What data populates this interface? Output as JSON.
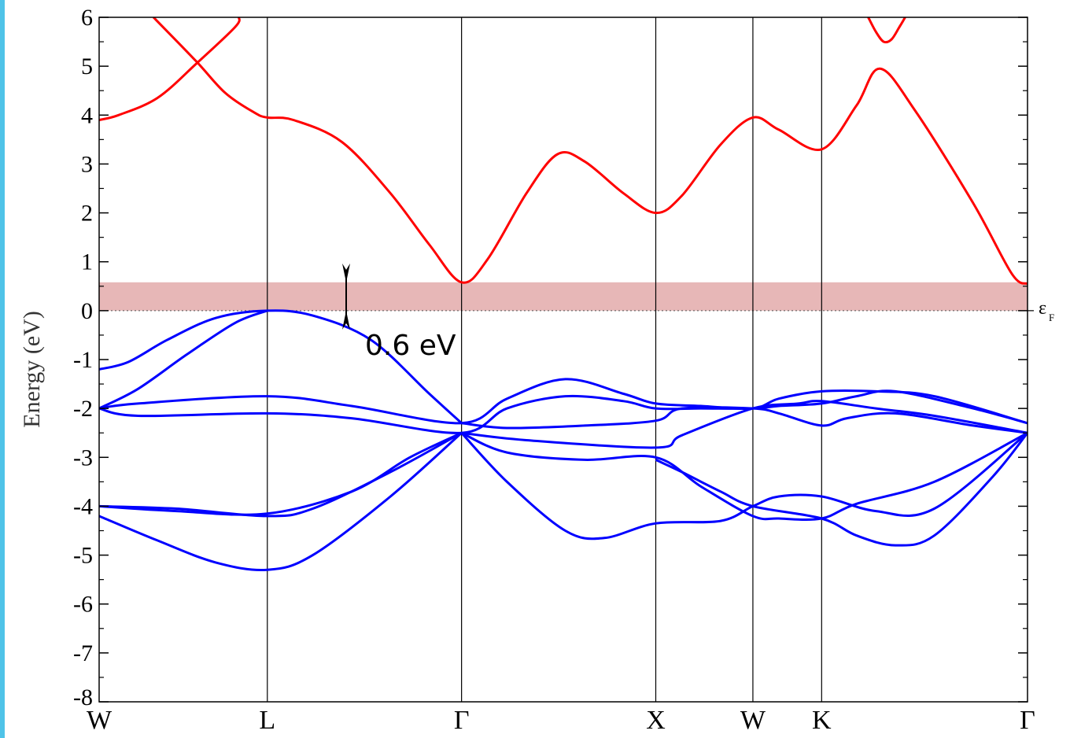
{
  "chart_data": {
    "type": "line",
    "ylabel": "Energy (eV)",
    "ylim": [
      -8,
      6
    ],
    "yticks": [
      "-8",
      "-7",
      "-6",
      "-5",
      "-4",
      "-3",
      "-2",
      "-1",
      "0",
      "1",
      "2",
      "3",
      "4",
      "5",
      "6"
    ],
    "grid": false,
    "kpoints": [
      {
        "label": "W",
        "x": 0
      },
      {
        "label": "L",
        "x": 0.866
      },
      {
        "label": "Γ",
        "x": 1.866
      },
      {
        "label": "X",
        "x": 2.866
      },
      {
        "label": "W",
        "x": 3.366
      },
      {
        "label": "K",
        "x": 3.72
      },
      {
        "label": "Γ",
        "x": 4.78
      }
    ],
    "fermi_level": 0,
    "fermi_label": "ε",
    "fermi_label_sub": "F",
    "gap": {
      "from": 0,
      "to": 0.58,
      "label": "0.6 eV",
      "color": "#e6b3b3"
    },
    "colors": {
      "conduction": "#ff0000",
      "valence": "#0000ff"
    },
    "series": [
      {
        "band": "conduction",
        "points": [
          [
            0,
            3.9
          ],
          [
            0.1,
            4.0
          ],
          [
            0.3,
            4.35
          ],
          [
            0.5,
            5.05
          ],
          [
            0.7,
            5.8
          ],
          [
            0.72,
            6.0
          ]
        ]
      },
      {
        "band": "conduction",
        "points": [
          [
            0.28,
            6.0
          ],
          [
            0.5,
            5.1
          ],
          [
            0.65,
            4.45
          ],
          [
            0.8,
            4.05
          ],
          [
            0.866,
            3.95
          ],
          [
            1.0,
            3.9
          ],
          [
            1.25,
            3.45
          ],
          [
            1.5,
            2.4
          ],
          [
            1.7,
            1.35
          ],
          [
            1.866,
            0.58
          ],
          [
            2.0,
            1.05
          ],
          [
            2.2,
            2.4
          ],
          [
            2.36,
            3.2
          ],
          [
            2.5,
            3.05
          ],
          [
            2.7,
            2.4
          ],
          [
            2.866,
            2.0
          ],
          [
            3.0,
            2.35
          ],
          [
            3.2,
            3.4
          ],
          [
            3.366,
            3.95
          ],
          [
            3.5,
            3.7
          ],
          [
            3.72,
            3.3
          ],
          [
            3.9,
            4.2
          ],
          [
            4.02,
            4.95
          ],
          [
            4.2,
            4.1
          ],
          [
            4.5,
            2.2
          ],
          [
            4.7,
            0.75
          ],
          [
            4.78,
            0.55
          ]
        ]
      },
      {
        "band": "conduction",
        "points": [
          [
            3.96,
            6.0
          ],
          [
            4.0,
            5.7
          ],
          [
            4.04,
            5.5
          ],
          [
            4.08,
            5.55
          ],
          [
            4.12,
            5.8
          ],
          [
            4.15,
            6.0
          ]
        ]
      },
      {
        "band": "valence",
        "points": [
          [
            0,
            -1.2
          ],
          [
            0.15,
            -1.05
          ],
          [
            0.35,
            -0.6
          ],
          [
            0.6,
            -0.15
          ],
          [
            0.866,
            0.0
          ],
          [
            1.1,
            -0.1
          ],
          [
            1.4,
            -0.6
          ],
          [
            1.7,
            -1.7
          ],
          [
            1.866,
            -2.3
          ]
        ]
      },
      {
        "band": "valence",
        "points": [
          [
            0,
            -2.0
          ],
          [
            0.2,
            -1.6
          ],
          [
            0.45,
            -0.9
          ],
          [
            0.7,
            -0.25
          ],
          [
            0.866,
            0.0
          ]
        ]
      },
      {
        "band": "valence",
        "points": [
          [
            0,
            -2.0
          ],
          [
            0.2,
            -1.9
          ],
          [
            0.866,
            -1.75
          ],
          [
            1.3,
            -1.95
          ],
          [
            1.866,
            -2.3
          ],
          [
            2.1,
            -1.8
          ],
          [
            2.4,
            -1.4
          ],
          [
            2.7,
            -1.7
          ],
          [
            2.866,
            -1.9
          ],
          [
            3.1,
            -1.95
          ],
          [
            3.366,
            -2.0
          ],
          [
            3.5,
            -1.8
          ],
          [
            3.72,
            -1.65
          ],
          [
            4.0,
            -1.65
          ],
          [
            4.3,
            -1.75
          ],
          [
            4.78,
            -2.3
          ]
        ]
      },
      {
        "band": "valence",
        "points": [
          [
            0,
            -2.0
          ],
          [
            0.2,
            -2.15
          ],
          [
            0.866,
            -2.1
          ],
          [
            1.3,
            -2.2
          ],
          [
            1.866,
            -2.5
          ],
          [
            2.1,
            -2.0
          ],
          [
            2.4,
            -1.75
          ],
          [
            2.7,
            -1.85
          ],
          [
            2.866,
            -2.0
          ],
          [
            3.1,
            -2.0
          ],
          [
            3.366,
            -2.0
          ],
          [
            3.5,
            -1.95
          ],
          [
            3.72,
            -1.9
          ],
          [
            3.9,
            -1.75
          ],
          [
            4.1,
            -1.65
          ],
          [
            4.5,
            -2.0
          ],
          [
            4.78,
            -2.3
          ]
        ]
      },
      {
        "band": "valence",
        "points": [
          [
            1.866,
            -2.3
          ],
          [
            2.1,
            -2.4
          ],
          [
            2.5,
            -2.35
          ],
          [
            2.866,
            -2.25
          ],
          [
            3.0,
            -2.0
          ],
          [
            3.366,
            -2.0
          ],
          [
            3.5,
            -2.1
          ],
          [
            3.72,
            -2.35
          ],
          [
            3.85,
            -2.2
          ],
          [
            4.1,
            -2.1
          ],
          [
            4.5,
            -2.35
          ],
          [
            4.78,
            -2.5
          ]
        ]
      },
      {
        "band": "valence",
        "points": [
          [
            1.866,
            -2.5
          ],
          [
            2.2,
            -2.65
          ],
          [
            2.866,
            -2.8
          ],
          [
            3.0,
            -2.55
          ],
          [
            3.366,
            -2.0
          ],
          [
            3.6,
            -1.9
          ],
          [
            3.72,
            -1.85
          ],
          [
            4.0,
            -2.0
          ],
          [
            4.3,
            -2.15
          ],
          [
            4.78,
            -2.5
          ]
        ]
      },
      {
        "band": "valence",
        "points": [
          [
            1.866,
            -2.5
          ],
          [
            2.1,
            -2.9
          ],
          [
            2.5,
            -3.05
          ],
          [
            2.866,
            -3.0
          ],
          [
            3.1,
            -3.6
          ],
          [
            3.366,
            -4.2
          ],
          [
            3.5,
            -4.25
          ],
          [
            3.72,
            -4.25
          ],
          [
            3.9,
            -3.95
          ],
          [
            4.3,
            -3.5
          ],
          [
            4.78,
            -2.5
          ]
        ]
      },
      {
        "band": "valence",
        "points": [
          [
            1.866,
            -2.5
          ],
          [
            2.1,
            -3.5
          ],
          [
            2.4,
            -4.5
          ],
          [
            2.6,
            -4.65
          ],
          [
            2.866,
            -4.35
          ],
          [
            3.2,
            -4.3
          ],
          [
            3.366,
            -4.0
          ],
          [
            3.5,
            -3.8
          ],
          [
            3.72,
            -3.8
          ],
          [
            4.0,
            -4.1
          ],
          [
            4.3,
            -4.05
          ],
          [
            4.78,
            -2.5
          ]
        ]
      },
      {
        "band": "valence",
        "points": [
          [
            2.866,
            -3.05
          ],
          [
            3.0,
            -3.3
          ],
          [
            3.2,
            -3.7
          ],
          [
            3.366,
            -4.0
          ],
          [
            3.72,
            -4.25
          ],
          [
            3.9,
            -4.6
          ],
          [
            4.1,
            -4.8
          ],
          [
            4.3,
            -4.6
          ],
          [
            4.6,
            -3.4
          ],
          [
            4.78,
            -2.5
          ]
        ]
      },
      {
        "band": "valence",
        "points": [
          [
            0,
            -4.0
          ],
          [
            0.4,
            -4.1
          ],
          [
            0.866,
            -4.15
          ],
          [
            1.3,
            -3.7
          ],
          [
            1.6,
            -3.0
          ],
          [
            1.866,
            -2.5
          ]
        ]
      },
      {
        "band": "valence",
        "points": [
          [
            0,
            -4.0
          ],
          [
            0.4,
            -4.05
          ],
          [
            0.866,
            -4.2
          ],
          [
            1.1,
            -4.05
          ],
          [
            1.5,
            -3.3
          ],
          [
            1.866,
            -2.5
          ]
        ]
      },
      {
        "band": "valence",
        "points": [
          [
            0,
            -4.2
          ],
          [
            0.3,
            -4.7
          ],
          [
            0.6,
            -5.15
          ],
          [
            0.866,
            -5.3
          ],
          [
            1.1,
            -5.0
          ],
          [
            1.5,
            -3.8
          ],
          [
            1.866,
            -2.5
          ]
        ]
      }
    ]
  }
}
